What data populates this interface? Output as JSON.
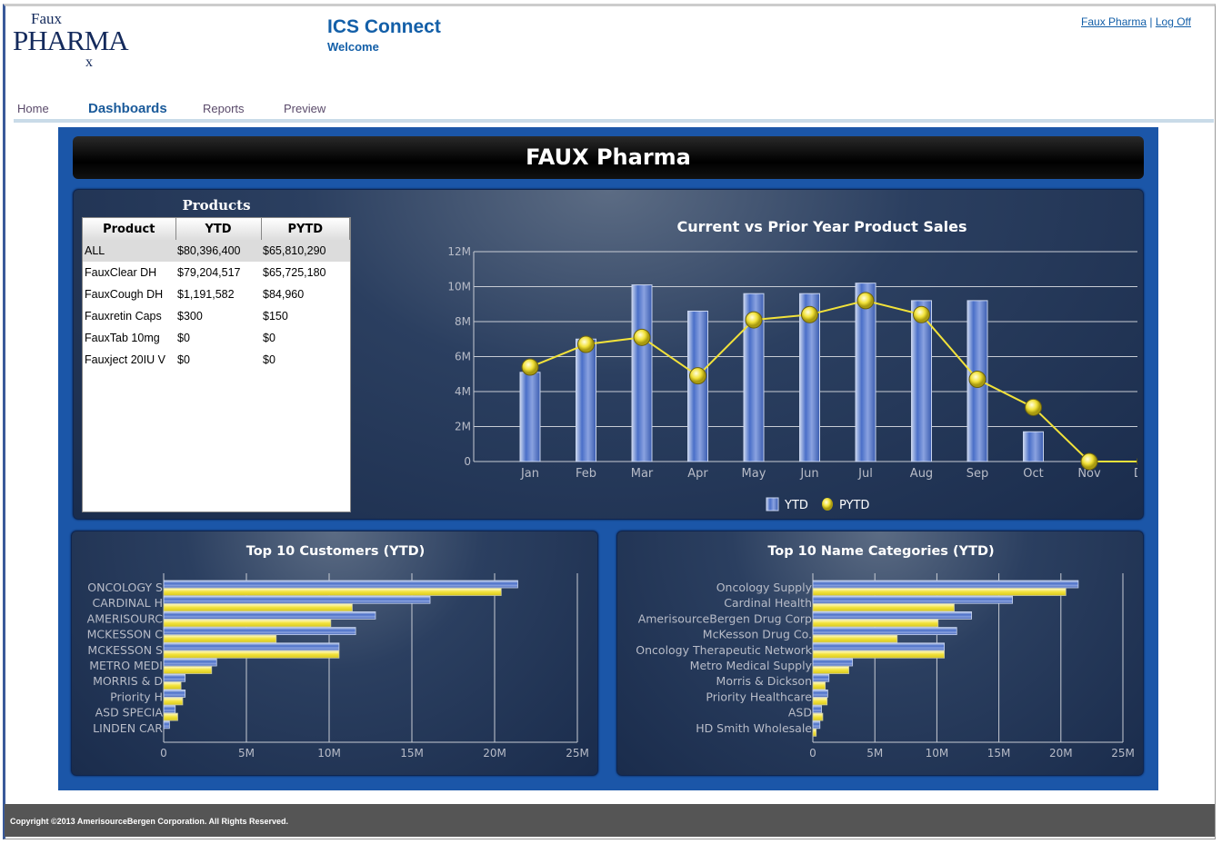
{
  "logo": {
    "small": "Faux",
    "big": "PHARMA",
    "rx": "x"
  },
  "header": {
    "title": "ICS Connect",
    "subtitle": "Welcome",
    "links": [
      "Faux Pharma",
      "Log Off"
    ],
    "separator": "|"
  },
  "nav": {
    "items": [
      "Home",
      "Dashboards",
      "Reports",
      "Preview"
    ],
    "active": "Dashboards"
  },
  "dashboard": {
    "title": "FAUX Pharma"
  },
  "products": {
    "title": "Products",
    "columns": [
      "Product",
      "YTD",
      "PYTD"
    ],
    "rows": [
      [
        "ALL",
        "$80,396,400",
        "$65,810,290"
      ],
      [
        "FauxClear DH",
        "$79,204,517",
        "$65,725,180"
      ],
      [
        "FauxCough DH",
        "$1,191,582",
        "$84,960"
      ],
      [
        "Fauxretin Caps",
        "$300",
        "$150"
      ],
      [
        "FauxTab 10mg",
        "$0",
        "$0"
      ],
      [
        "Fauxject 20IU V",
        "$0",
        "$0"
      ]
    ]
  },
  "colors": {
    "ytd": "#4a6fc8",
    "pytd": "#f2e23a",
    "dashboard_bg": "#1b56a8"
  },
  "chart_data": [
    {
      "type": "bar+line",
      "title": "Current vs Prior Year Product Sales",
      "categories": [
        "Jan",
        "Feb",
        "Mar",
        "Apr",
        "May",
        "Jun",
        "Jul",
        "Aug",
        "Sep",
        "Oct",
        "Nov",
        "Dec"
      ],
      "yticks": [
        "0",
        "2M",
        "4M",
        "6M",
        "8M",
        "10M",
        "12M"
      ],
      "ylim": [
        0,
        12000000
      ],
      "grid": true,
      "legend": "bottom",
      "series": [
        {
          "name": "YTD",
          "type": "bar",
          "values": [
            5100000,
            7000000,
            10100000,
            8600000,
            9600000,
            9600000,
            10200000,
            9200000,
            9200000,
            1700000,
            0,
            0
          ]
        },
        {
          "name": "PYTD",
          "type": "line",
          "values": [
            5400000,
            6700000,
            7100000,
            4900000,
            8100000,
            8400000,
            9200000,
            8400000,
            4700000,
            3100000,
            0,
            0
          ]
        }
      ]
    },
    {
      "type": "hbar",
      "title": "Top 10 Customers (YTD)",
      "categories": [
        "ONCOLOGY S",
        "CARDINAL H",
        "AMERISOURC",
        "MCKESSON C",
        "MCKESSON S",
        "METRO MEDI",
        "MORRIS & D",
        "Priority H",
        "ASD SPECIA",
        "LINDEN CAR"
      ],
      "xticks": [
        "0",
        "5M",
        "10M",
        "15M",
        "20M",
        "25M"
      ],
      "xlim": [
        0,
        25000000
      ],
      "grid": true,
      "series": [
        {
          "name": "YTD",
          "values": [
            21400000,
            16100000,
            12800000,
            11600000,
            10600000,
            3200000,
            1300000,
            1300000,
            700000,
            350000
          ]
        },
        {
          "name": "PYTD",
          "values": [
            20400000,
            11400000,
            10100000,
            6800000,
            10600000,
            2900000,
            1050000,
            1150000,
            850000,
            0
          ]
        }
      ]
    },
    {
      "type": "hbar",
      "title": "Top 10 Name Categories (YTD)",
      "categories": [
        "Oncology Supply",
        "Cardinal Health",
        "AmerisourceBergen Drug Corp",
        "McKesson Drug Co.",
        "Oncology Therapeutic Network",
        "Metro Medical Supply",
        "Morris & Dickson",
        "Priority Healthcare",
        "ASD",
        "HD Smith Wholesale"
      ],
      "xticks": [
        "0",
        "5M",
        "10M",
        "15M",
        "20M",
        "25M"
      ],
      "xlim": [
        0,
        25000000
      ],
      "grid": true,
      "series": [
        {
          "name": "YTD",
          "values": [
            21400000,
            16100000,
            12800000,
            11600000,
            10600000,
            3200000,
            1300000,
            1200000,
            700000,
            570000
          ]
        },
        {
          "name": "PYTD",
          "values": [
            20400000,
            11400000,
            10100000,
            6800000,
            10600000,
            2900000,
            1000000,
            1150000,
            800000,
            270000
          ]
        }
      ]
    }
  ],
  "footer": {
    "copyright": "Copyright ©2013 AmerisourceBergen Corporation. All Rights Reserved."
  }
}
